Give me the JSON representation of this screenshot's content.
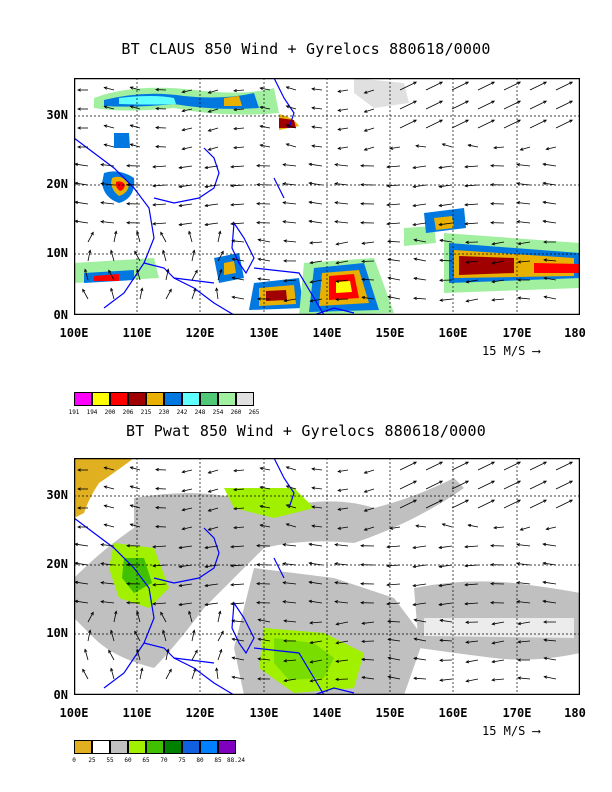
{
  "panels": [
    {
      "title": "BT CLAUS 850 Wind + Gyrelocs 880618/0000",
      "legend": {
        "colors": [
          "#ff00ff",
          "#ffff00",
          "#ff0000",
          "#a00000",
          "#e8b000",
          "#0078e0",
          "#60ffff",
          "#50c878",
          "#a0f0a0",
          "#e0e0e0"
        ],
        "labels": [
          "191",
          "194",
          "200",
          "206",
          "215",
          "230",
          "242",
          "248",
          "254",
          "260",
          "265"
        ]
      }
    },
    {
      "title": "BT Pwat 850 Wind + Gyrelocs 880618/0000",
      "legend": {
        "colors": [
          "#e0b020",
          "#ffffff",
          "#c0c0c0",
          "#a0f000",
          "#40c000",
          "#008000",
          "#1060e0",
          "#0080ff",
          "#8000c0"
        ],
        "labels": [
          "0",
          "25",
          "55",
          "60",
          "65",
          "70",
          "75",
          "80",
          "85",
          "88.24"
        ]
      }
    }
  ],
  "axes": {
    "lon_labels": [
      "100E",
      "110E",
      "120E",
      "130E",
      "140E",
      "150E",
      "160E",
      "170E",
      "180"
    ],
    "lat_labels": [
      "30N",
      "20N",
      "10N",
      "0N"
    ]
  },
  "reference_vector": "15 M/S",
  "colors": {
    "coast": "#0000ff",
    "grid": "#000000"
  }
}
